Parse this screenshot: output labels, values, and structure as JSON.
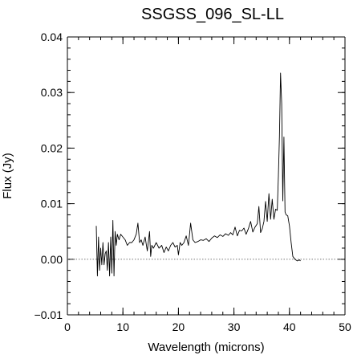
{
  "chart_data": {
    "type": "line",
    "title": "SSGSS_096_SL-LL",
    "xlabel": "Wavelength (microns)",
    "ylabel": "Flux (Jy)",
    "xlim": [
      0,
      50
    ],
    "ylim": [
      -0.01,
      0.04
    ],
    "x_ticks": [
      0,
      10,
      20,
      30,
      40,
      50
    ],
    "x_tick_labels": [
      "0",
      "10",
      "20",
      "30",
      "40",
      "50"
    ],
    "y_ticks": [
      -0.01,
      0.0,
      0.01,
      0.02,
      0.03,
      0.04
    ],
    "y_tick_labels": [
      "−0.01",
      "0.00",
      "0.01",
      "0.02",
      "0.03",
      "0.04"
    ],
    "x_minor_step": 2,
    "y_minor_step": 0.002,
    "zero_line": {
      "y": 0.0,
      "style": "dotted",
      "color": "#777777"
    },
    "grid": false,
    "legend": "none",
    "line_color": "#000000",
    "series": [
      {
        "x": [
          5.2,
          5.4,
          5.6,
          5.8,
          6.0,
          6.2,
          6.4,
          6.6,
          6.8,
          7.0,
          7.2,
          7.4,
          7.6,
          7.8,
          8.0,
          8.2,
          8.4,
          8.6,
          8.8,
          9.0,
          9.3,
          9.6,
          10.0,
          10.4,
          10.8,
          11.2,
          11.6,
          12.0,
          12.4,
          12.7,
          13.0,
          13.3,
          13.6,
          14.0,
          14.4,
          14.8,
          15.0,
          15.2,
          15.5,
          16.0,
          16.5,
          17.0,
          17.4,
          17.8,
          18.2,
          18.6,
          19.0,
          19.4,
          19.8,
          20.0,
          20.3,
          20.6,
          21.0,
          21.4,
          21.8,
          22.2,
          22.6,
          23.0,
          23.5,
          24.0,
          24.5,
          25.0,
          25.5,
          26.0,
          26.5,
          27.0,
          27.5,
          28.0,
          28.5,
          29.0,
          29.4,
          29.8,
          30.2,
          30.6,
          31.0,
          31.4,
          31.8,
          32.2,
          32.6,
          33.0,
          33.4,
          33.8,
          34.2,
          34.5,
          34.8,
          35.1,
          35.4,
          35.7,
          36.0,
          36.3,
          36.6,
          36.9,
          37.2,
          37.5,
          37.8,
          38.0,
          38.2,
          38.4,
          38.6,
          38.8,
          39.0,
          39.2,
          39.4,
          39.7,
          40.0,
          40.3,
          40.6,
          41.0,
          41.4,
          41.8,
          42.0
        ],
        "y": [
          0.006,
          -0.003,
          0.004,
          -0.002,
          0.002,
          -0.001,
          0.003,
          -0.001,
          0.001,
          0.0015,
          -0.002,
          0.003,
          -0.003,
          0.004,
          -0.0025,
          0.007,
          -0.003,
          0.005,
          0.0025,
          0.0045,
          0.0035,
          0.0045,
          0.004,
          0.0035,
          0.0025,
          0.003,
          0.003,
          0.0035,
          0.0045,
          0.0065,
          0.003,
          0.0035,
          0.0025,
          0.004,
          0.0015,
          0.005,
          0.0005,
          0.0025,
          0.002,
          0.003,
          0.002,
          0.0025,
          0.0012,
          0.0022,
          0.0015,
          0.0025,
          0.003,
          0.0022,
          0.0025,
          0.0008,
          0.003,
          0.0025,
          0.003,
          0.0042,
          0.0025,
          0.0065,
          0.0035,
          0.003,
          0.0032,
          0.0035,
          0.0034,
          0.0037,
          0.0032,
          0.0038,
          0.0042,
          0.0039,
          0.0044,
          0.0041,
          0.0046,
          0.0043,
          0.0048,
          0.0044,
          0.0058,
          0.0042,
          0.0052,
          0.0051,
          0.0056,
          0.0045,
          0.0055,
          0.0068,
          0.0049,
          0.0058,
          0.0064,
          0.0095,
          0.0048,
          0.0055,
          0.0068,
          0.0104,
          0.0068,
          0.0118,
          0.0072,
          0.0108,
          0.0072,
          0.009,
          0.0088,
          0.015,
          0.022,
          0.0335,
          0.028,
          0.0105,
          0.022,
          0.0085,
          0.008,
          0.0078,
          0.006,
          0.003,
          0.0005,
          0.0,
          -0.0003,
          -0.0001,
          -0.0003
        ]
      }
    ]
  }
}
